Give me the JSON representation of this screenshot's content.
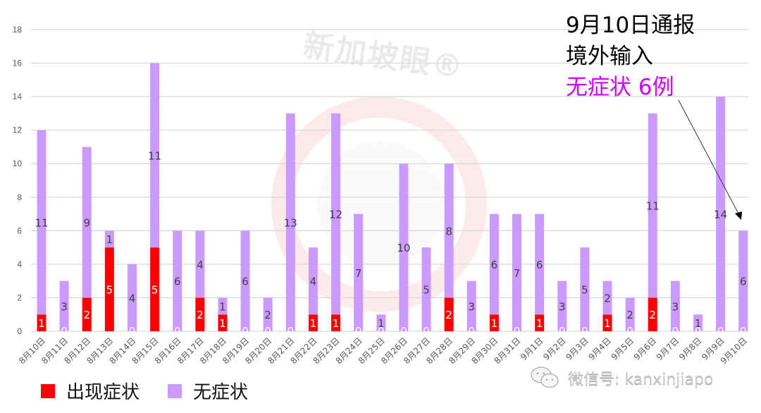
{
  "chart_data": {
    "type": "bar",
    "stacked": true,
    "title": "",
    "xlabel": "",
    "ylabel": "",
    "ylim": [
      0,
      18
    ],
    "yticks": [
      0,
      2,
      4,
      6,
      8,
      10,
      12,
      14,
      16,
      18
    ],
    "grid": true,
    "legend_position": "bottom-left",
    "categories": [
      "8月10日",
      "8月11日",
      "8月12日",
      "8月13日",
      "8月14日",
      "8月15日",
      "8月16日",
      "8月17日",
      "8月18日",
      "8月19日",
      "8月20日",
      "8月21日",
      "8月22日",
      "8月23日",
      "8月24日",
      "8月25日",
      "8月26日",
      "8月27日",
      "8月28日",
      "8月29日",
      "8月30日",
      "8月31日",
      "9月1日",
      "9月2日",
      "9月3日",
      "9月4日",
      "9月5日",
      "9月6日",
      "9月7日",
      "9月8日",
      "9月9日",
      "9月10日"
    ],
    "series": [
      {
        "name": "出现症状",
        "color": "#ff0000",
        "values": [
          1,
          0,
          2,
          5,
          0,
          5,
          0,
          2,
          1,
          0,
          0,
          0,
          1,
          1,
          0,
          0,
          0,
          0,
          2,
          0,
          1,
          0,
          1,
          0,
          0,
          1,
          0,
          2,
          0,
          0,
          0,
          0
        ]
      },
      {
        "name": "无症状",
        "color": "#cc99ff",
        "values": [
          11,
          3,
          9,
          1,
          4,
          11,
          6,
          4,
          1,
          6,
          2,
          13,
          4,
          12,
          7,
          1,
          10,
          5,
          8,
          3,
          6,
          7,
          6,
          3,
          5,
          2,
          2,
          11,
          3,
          1,
          14,
          6
        ]
      }
    ],
    "annotations": [
      {
        "text": "9月10日通报",
        "target": "9月10日"
      },
      {
        "text": "境外输入"
      },
      {
        "text": "无症状 6例",
        "color": "#cc00ff"
      }
    ]
  },
  "legend": {
    "items": [
      {
        "label": "出现症状",
        "color": "#ff0000"
      },
      {
        "label": "无症状",
        "color": "#cc99ff"
      }
    ]
  },
  "annotation": {
    "line1": "9月10日通报",
    "line2": "境外输入",
    "line3": "无症状 6例"
  },
  "watermark": {
    "brand": "新加坡眼®",
    "wechat": "微信号: kanxinjiapo"
  }
}
